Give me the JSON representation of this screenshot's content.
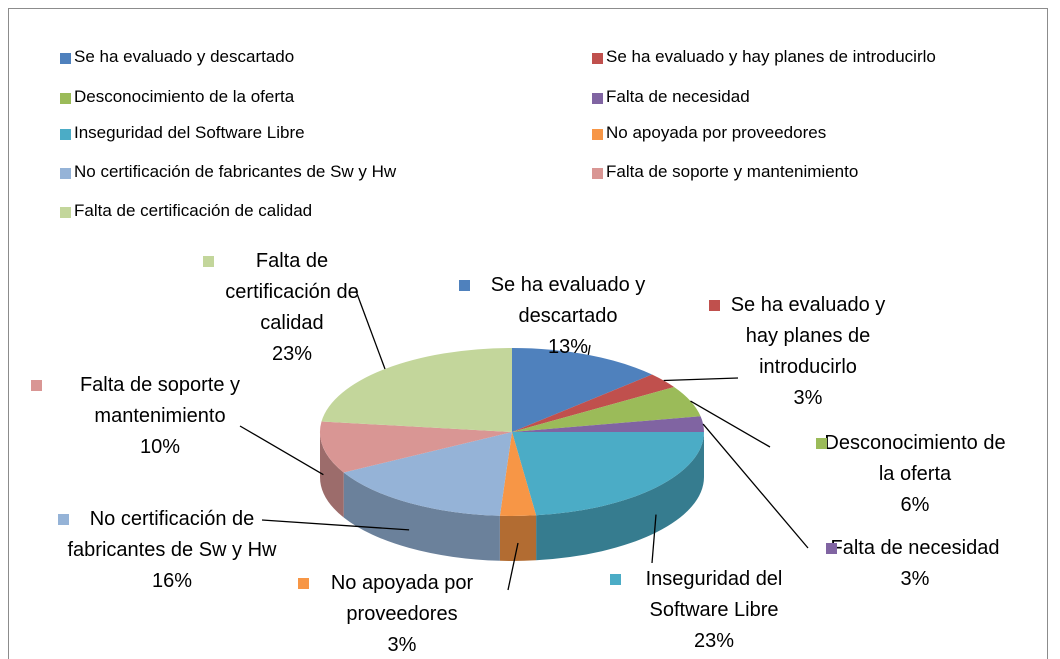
{
  "chart_data": {
    "type": "pie",
    "categories": [
      "Se ha evaluado y descartado",
      "Se ha evaluado y hay planes de introducirlo",
      "Desconocimiento de la oferta",
      "Falta de necesidad",
      "Inseguridad del Software Libre",
      "No apoyada por proveedores",
      "No certificación de fabricantes de Sw y Hw",
      "Falta de soporte y mantenimiento",
      "Falta de certificación de calidad"
    ],
    "values": [
      13,
      3,
      6,
      3,
      23,
      3,
      16,
      10,
      23
    ],
    "value_labels": [
      "13%",
      "3%",
      "6%",
      "3%",
      "23%",
      "3%",
      "16%",
      "10%",
      "23%"
    ],
    "colors": [
      "#4f81bd",
      "#c0504d",
      "#9bbb59",
      "#8064a2",
      "#4bacc6",
      "#f79646",
      "#95b3d7",
      "#d99694",
      "#c3d69b"
    ],
    "legend": "top"
  }
}
